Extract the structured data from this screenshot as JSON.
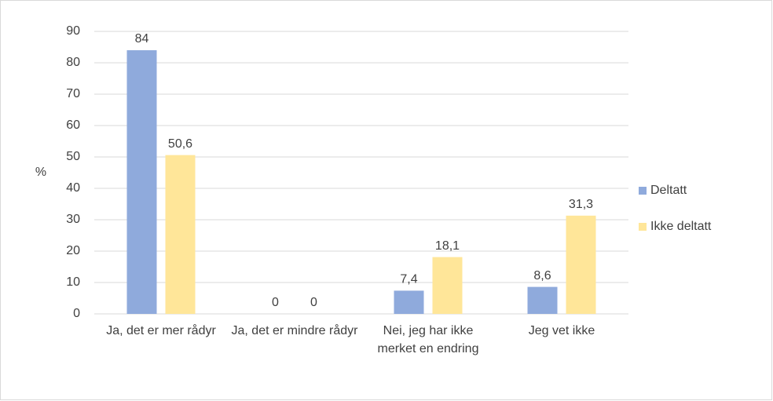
{
  "chart_data": {
    "type": "bar",
    "ylabel": "%",
    "categories": [
      "Ja, det er mer rådyr",
      "Ja, det er mindre rådyr",
      "Nei, jeg har ikke merket en endring",
      "Jeg vet ikke"
    ],
    "series": [
      {
        "name": "Deltatt",
        "color": "#8faadc",
        "values": [
          84,
          0,
          7.4,
          8.6
        ],
        "value_labels": [
          "84",
          "0",
          "7,4",
          "8,6"
        ]
      },
      {
        "name": "Ikke deltatt",
        "color": "#ffe699",
        "values": [
          50.6,
          0,
          18.1,
          31.3
        ],
        "value_labels": [
          "50,6",
          "0",
          "18,1",
          "31,3"
        ]
      }
    ],
    "ylim": [
      0,
      90
    ],
    "yticks": [
      0,
      10,
      20,
      30,
      40,
      50,
      60,
      70,
      80,
      90
    ],
    "grid": true,
    "legend": "right"
  }
}
